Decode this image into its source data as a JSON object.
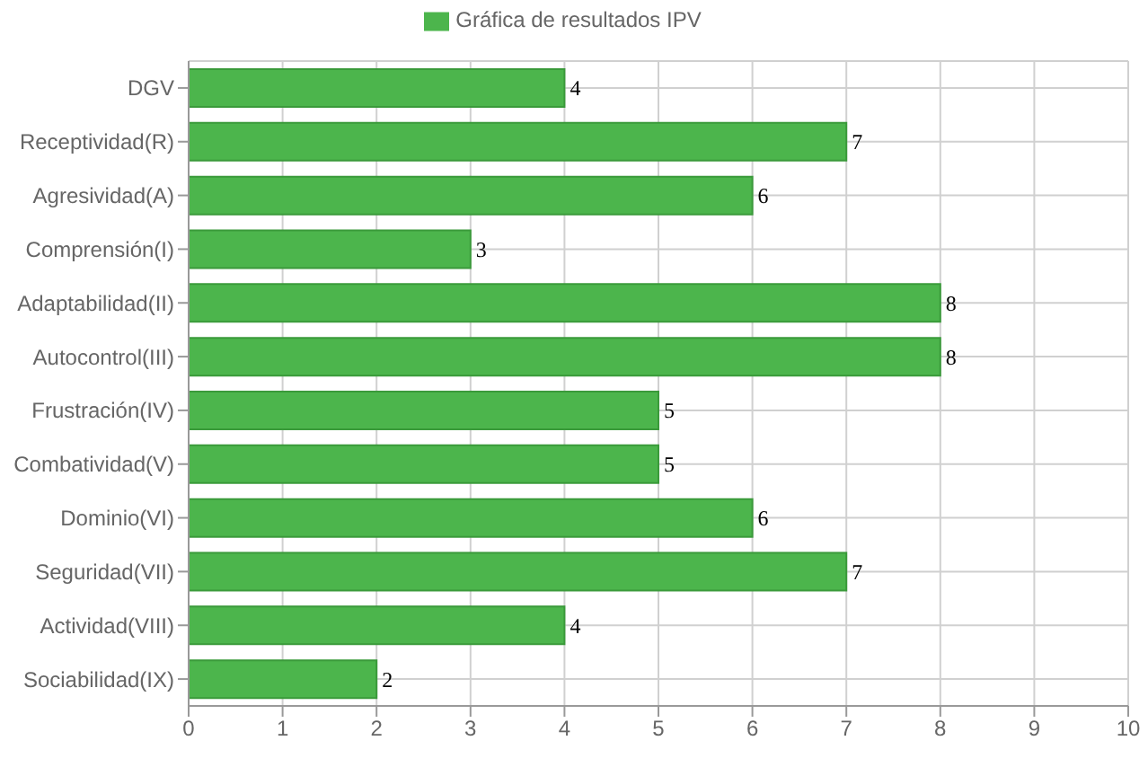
{
  "chart_data": {
    "type": "bar",
    "orientation": "horizontal",
    "categories": [
      "DGV",
      "Receptividad(R)",
      "Agresividad(A)",
      "Comprensión(I)",
      "Adaptabilidad(II)",
      "Autocontrol(III)",
      "Frustración(IV)",
      "Combatividad(V)",
      "Dominio(VI)",
      "Seguridad(VII)",
      "Actividad(VIII)",
      "Sociabilidad(IX)"
    ],
    "series": [
      {
        "name": "Gráfica de resultados IPV",
        "color": "#4cb54c",
        "values": [
          4,
          7,
          6,
          3,
          8,
          8,
          5,
          5,
          6,
          7,
          4,
          2
        ]
      }
    ],
    "xlim": [
      0,
      10
    ],
    "xticks": [
      0,
      1,
      2,
      3,
      4,
      5,
      6,
      7,
      8,
      9,
      10
    ],
    "grid": true,
    "legend": "top",
    "data_labels": true
  }
}
